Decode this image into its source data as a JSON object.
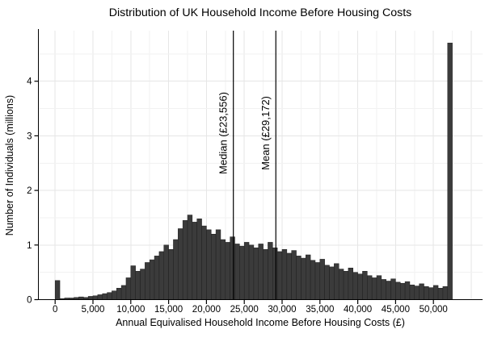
{
  "chart_data": {
    "type": "histogram",
    "title": "Distribution of UK Household Income Before Housing Costs",
    "xlabel": "Annual Equivalised Household Income Before Housing Costs (£)",
    "ylabel": "Number of Individuals (millions)",
    "x_tick_values": [
      0,
      5000,
      10000,
      15000,
      20000,
      25000,
      30000,
      35000,
      40000,
      45000,
      50000
    ],
    "y_tick_values": [
      0,
      1,
      2,
      3,
      4
    ],
    "xlim": [
      -2300,
      56700
    ],
    "ylim": [
      0,
      4.95
    ],
    "grid": true,
    "legend": false,
    "bin_start": 0,
    "bin_width": 625,
    "values": [
      0.35,
      0.02,
      0.03,
      0.03,
      0.04,
      0.05,
      0.04,
      0.06,
      0.07,
      0.09,
      0.11,
      0.13,
      0.16,
      0.21,
      0.26,
      0.4,
      0.62,
      0.52,
      0.56,
      0.68,
      0.73,
      0.8,
      0.88,
      1.0,
      0.92,
      1.1,
      1.3,
      1.45,
      1.55,
      1.42,
      1.48,
      1.35,
      1.28,
      1.2,
      1.28,
      1.1,
      1.05,
      1.15,
      1.02,
      0.98,
      1.05,
      1.0,
      0.95,
      1.02,
      0.92,
      1.05,
      0.95,
      0.88,
      0.92,
      0.85,
      0.9,
      0.8,
      0.76,
      0.82,
      0.72,
      0.68,
      0.74,
      0.63,
      0.6,
      0.66,
      0.56,
      0.52,
      0.58,
      0.5,
      0.47,
      0.52,
      0.44,
      0.4,
      0.44,
      0.37,
      0.34,
      0.38,
      0.32,
      0.3,
      0.33,
      0.27,
      0.25,
      0.29,
      0.24,
      0.22,
      0.26,
      0.21,
      0.24,
      4.7
    ],
    "reference_lines": [
      {
        "label": "Median (£23,556)",
        "value": 23556
      },
      {
        "label": "Mean (£29,172)",
        "value": 29172
      }
    ],
    "colors": {
      "bar_fill": "#3b3b3b",
      "bar_stroke": "#1f1f1f",
      "grid_major": "#e6e6e6",
      "grid_minor": "#f2f2f2",
      "axis": "#000000",
      "reference_line": "#000000",
      "background": "#ffffff"
    }
  }
}
